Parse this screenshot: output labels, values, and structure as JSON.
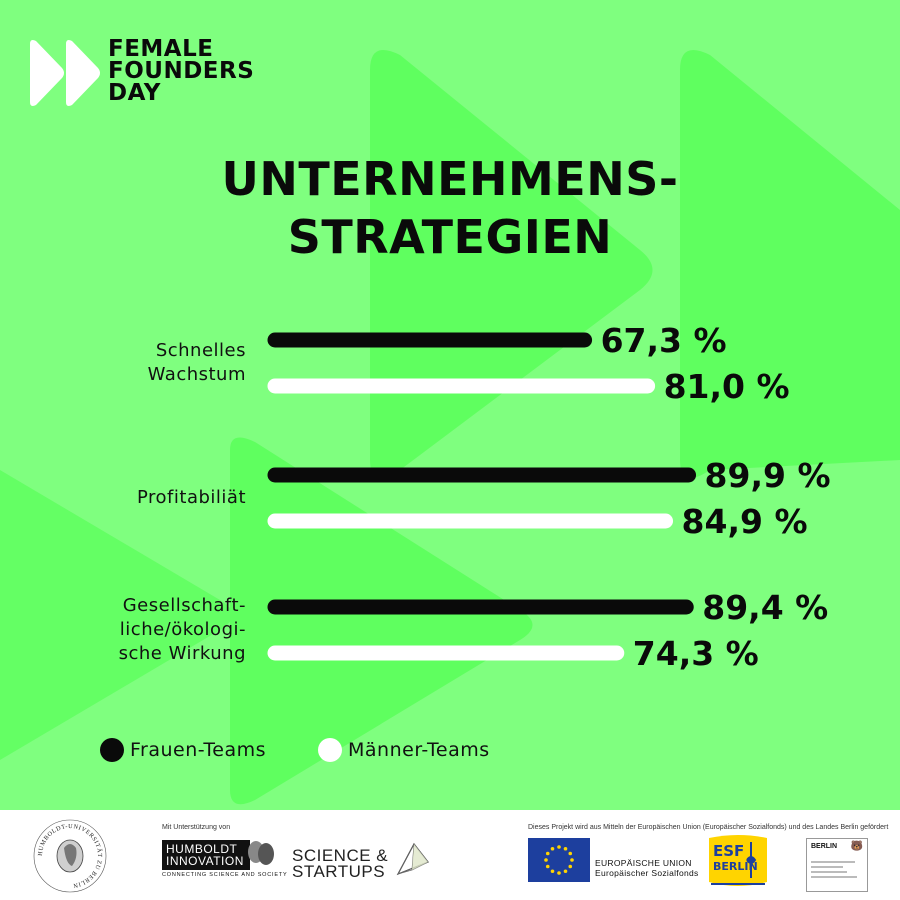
{
  "brand": {
    "lines": [
      "FEMALE",
      "FOUNDERS",
      "DAY"
    ]
  },
  "title_lines": [
    "UNTERNEHMENS-",
    "STRATEGIEN"
  ],
  "colors": {
    "background": "#7fff7f",
    "shape": "#5fff5f",
    "frauen": "#0a0a0a",
    "maenner": "#ffffff"
  },
  "chart_data": {
    "type": "bar",
    "orientation": "horizontal",
    "categories": [
      {
        "lines": [
          "Schnelles",
          "Wachstum"
        ]
      },
      {
        "lines": [
          "Profitabiliät"
        ]
      },
      {
        "lines": [
          "Gesellschaft-",
          "liche/ökologi-",
          "sche Wirkung"
        ]
      }
    ],
    "series": [
      {
        "name": "Frauen-Teams",
        "color": "#0a0a0a",
        "values": [
          67.3,
          89.9,
          89.4
        ],
        "labels": [
          "67,3 %",
          "89,9 %",
          "89,4 %"
        ]
      },
      {
        "name": "Männer-Teams",
        "color": "#ffffff",
        "values": [
          81.0,
          84.9,
          74.3
        ],
        "labels": [
          "81,0 %",
          "84,9 %",
          "74,3 %"
        ]
      }
    ],
    "legend": "bottom-left",
    "grid": false
  },
  "footer": {
    "hu_seal": {
      "ring_text": "HUMBOLDT-UNIVERSITÄT ZU BERLIN"
    },
    "support_note": "Mit Unterstützung von",
    "humboldt_innovation": {
      "lines": [
        "HUMBOLDT",
        "INNOVATION"
      ],
      "tagline": "CONNECTING SCIENCE AND SOCIETY"
    },
    "science_startups": {
      "lines": [
        "SCIENCE &",
        "STARTUPS"
      ]
    },
    "funding_note": "Dieses Projekt wird aus Mitteln der Europäischen Union (Europäischer Sozialfonds) und des Landes Berlin gefördert",
    "eu": {
      "lines": [
        "EUROPÄISCHE UNION",
        "Europäischer Sozialfonds"
      ]
    },
    "esf": {
      "lines": [
        "ESF",
        "BERLIN"
      ]
    },
    "berlin": {
      "label": "BERLIN"
    }
  }
}
